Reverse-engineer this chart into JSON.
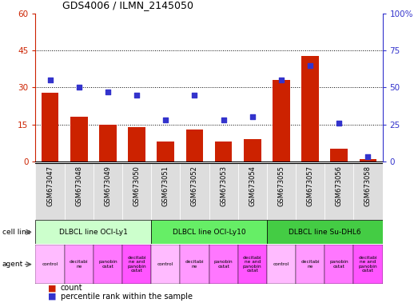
{
  "title": "GDS4006 / ILMN_2145050",
  "samples": [
    "GSM673047",
    "GSM673048",
    "GSM673049",
    "GSM673050",
    "GSM673051",
    "GSM673052",
    "GSM673053",
    "GSM673054",
    "GSM673055",
    "GSM673057",
    "GSM673056",
    "GSM673058"
  ],
  "counts": [
    28,
    18,
    15,
    14,
    8,
    13,
    8,
    9,
    33,
    43,
    5,
    1
  ],
  "percentiles": [
    55,
    50,
    47,
    45,
    28,
    45,
    28,
    30,
    55,
    65,
    26,
    3
  ],
  "bar_color": "#cc2200",
  "dot_color": "#3333cc",
  "ylim_left": [
    0,
    60
  ],
  "ylim_right": [
    0,
    100
  ],
  "yticks_left": [
    0,
    15,
    30,
    45,
    60
  ],
  "yticks_right": [
    0,
    25,
    50,
    75,
    100
  ],
  "cell_line_groups": [
    {
      "label": "DLBCL line OCI-Ly1",
      "start": 0,
      "end": 4,
      "color": "#ccffcc"
    },
    {
      "label": "DLBCL line OCI-Ly10",
      "start": 4,
      "end": 8,
      "color": "#66ee66"
    },
    {
      "label": "DLBCL line Su-DHL6",
      "start": 8,
      "end": 12,
      "color": "#44cc44"
    }
  ],
  "agent_texts": [
    "control",
    "decitabi\nne",
    "panobin\nostat",
    "decitabi\nne and\npanobin\nostat",
    "control",
    "decitabi\nne",
    "panobin\nostat",
    "decitabi\nne and\npanobin\nostat",
    "control",
    "decitabi\nne",
    "panobin\nostat",
    "decitabi\nne and\npanobin\nostat"
  ],
  "agent_bg_colors": [
    "#ffbbff",
    "#ff99ff",
    "#ff77ff",
    "#ff55ff"
  ],
  "cell_line_label": "cell line",
  "agent_label": "agent",
  "legend_count_label": "count",
  "legend_pct_label": "percentile rank within the sample",
  "chart_bg": "#ffffff",
  "xtick_bg": "#dddddd",
  "tick_color_left": "#cc2200",
  "tick_color_right": "#3333cc",
  "grid_color": "#000000",
  "border_color": "#000000"
}
